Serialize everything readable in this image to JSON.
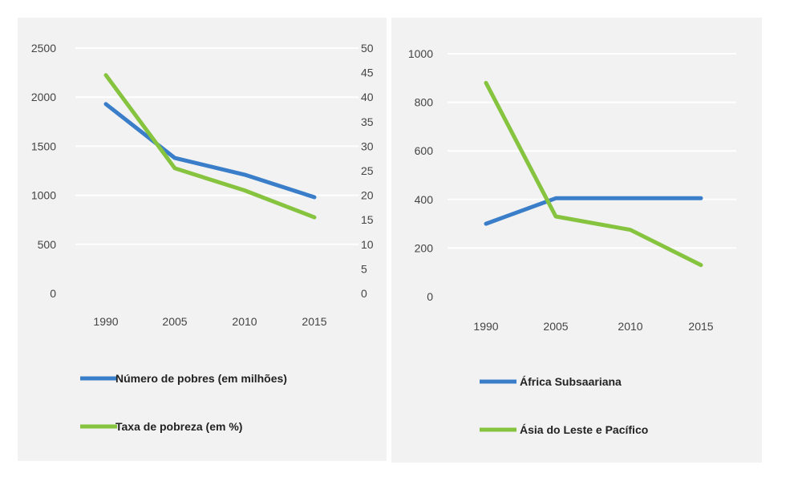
{
  "chart_data": [
    {
      "type": "line",
      "categories": [
        "1990",
        "2005",
        "2010",
        "2015"
      ],
      "series": [
        {
          "name": "Número de pobres (em milhões)",
          "values": [
            1930,
            1380,
            1210,
            980
          ],
          "color": "#3a7ec9",
          "axis": "left"
        },
        {
          "name": "Taxa de pobreza (em %)",
          "values": [
            44.5,
            25.5,
            21,
            15.5
          ],
          "color": "#86c440",
          "axis": "right"
        }
      ],
      "y_left": {
        "range": [
          0,
          2500
        ],
        "ticks": [
          "0",
          "500",
          "1000",
          "1500",
          "2000",
          "2500"
        ]
      },
      "y_right": {
        "range": [
          0,
          50
        ],
        "ticks": [
          "0",
          "5",
          "10",
          "15",
          "20",
          "25",
          "30",
          "35",
          "40",
          "45",
          "50"
        ]
      },
      "grid": true,
      "legend_position": "bottom"
    },
    {
      "type": "line",
      "categories": [
        "1990",
        "2005",
        "2010",
        "2015"
      ],
      "series": [
        {
          "name": "África Subsaariana",
          "values": [
            300,
            405,
            405,
            405
          ],
          "color": "#3a7ec9"
        },
        {
          "name": "Ásia do Leste e Pacífico",
          "values": [
            880,
            330,
            275,
            130
          ],
          "color": "#86c440"
        }
      ],
      "y": {
        "range": [
          0,
          1000
        ],
        "ticks": [
          "0",
          "200",
          "400",
          "600",
          "800",
          "1000"
        ]
      },
      "grid": true,
      "legend_position": "bottom"
    }
  ]
}
